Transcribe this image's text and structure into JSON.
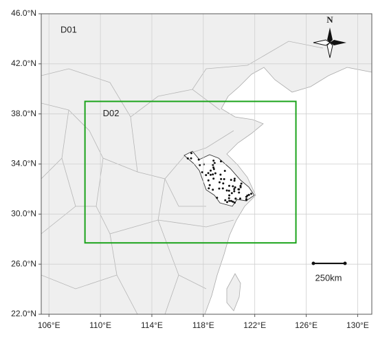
{
  "map": {
    "xlim": [
      105.4,
      131.1
    ],
    "ylim": [
      22,
      46
    ],
    "xticks": [
      {
        "value": 106,
        "label": "106°E"
      },
      {
        "value": 110,
        "label": "110°E"
      },
      {
        "value": 114,
        "label": "114°E"
      },
      {
        "value": 118,
        "label": "118°E"
      },
      {
        "value": 122,
        "label": "122°E"
      },
      {
        "value": 126,
        "label": "126°E"
      },
      {
        "value": 130,
        "label": "130°E"
      }
    ],
    "yticks": [
      {
        "value": 22,
        "label": "22.0°N"
      },
      {
        "value": 26,
        "label": "26.0°N"
      },
      {
        "value": 30,
        "label": "30.0°N"
      },
      {
        "value": 34,
        "label": "34.0°N"
      },
      {
        "value": 38,
        "label": "38.0°N"
      },
      {
        "value": 42,
        "label": "42.0°N"
      },
      {
        "value": 46,
        "label": "46.0°N"
      }
    ],
    "grid": true,
    "domains": [
      {
        "label": "D01"
      },
      {
        "label": "D02",
        "lon": [
          108.8,
          125.2
        ],
        "lat": [
          27.7,
          39
        ],
        "color": "#1aa31a"
      }
    ],
    "scale_bar": "250km",
    "north": "N"
  }
}
